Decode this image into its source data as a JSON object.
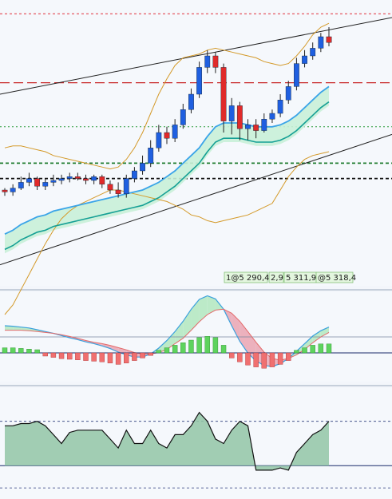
{
  "chart_data": {
    "type": "candlestick-multi-panel",
    "panels": [
      {
        "name": "price",
        "ylim": [
          5200,
          5345
        ],
        "candles": [
          [
            5250,
            5251,
            5247,
            5249
          ],
          [
            5249,
            5253,
            5247,
            5251
          ],
          [
            5251,
            5257,
            5250,
            5254
          ],
          [
            5254,
            5259,
            5252,
            5256
          ],
          [
            5256,
            5257,
            5250,
            5252
          ],
          [
            5252,
            5256,
            5250,
            5254
          ],
          [
            5254,
            5258,
            5252,
            5255
          ],
          [
            5255,
            5258,
            5253,
            5256
          ],
          [
            5256,
            5259,
            5254,
            5257
          ],
          [
            5257,
            5259,
            5255,
            5256
          ],
          [
            5256,
            5258,
            5253,
            5255
          ],
          [
            5255,
            5258,
            5253,
            5257
          ],
          [
            5257,
            5258,
            5251,
            5253
          ],
          [
            5253,
            5255,
            5248,
            5250
          ],
          [
            5250,
            5254,
            5246,
            5248
          ],
          [
            5248,
            5258,
            5246,
            5256
          ],
          [
            5256,
            5262,
            5254,
            5260
          ],
          [
            5260,
            5268,
            5258,
            5264
          ],
          [
            5264,
            5276,
            5262,
            5272
          ],
          [
            5272,
            5284,
            5270,
            5280
          ],
          [
            5280,
            5283,
            5274,
            5277
          ],
          [
            5277,
            5287,
            5275,
            5284
          ],
          [
            5284,
            5295,
            5282,
            5292
          ],
          [
            5292,
            5303,
            5290,
            5300
          ],
          [
            5300,
            5317,
            5298,
            5314
          ],
          [
            5314,
            5323,
            5311,
            5320
          ],
          [
            5320,
            5322,
            5311,
            5314
          ],
          [
            5314,
            5316,
            5280,
            5286
          ],
          [
            5286,
            5298,
            5279,
            5294
          ],
          [
            5294,
            5296,
            5276,
            5282
          ],
          [
            5282,
            5287,
            5276,
            5284
          ],
          [
            5284,
            5287,
            5277,
            5281
          ],
          [
            5281,
            5290,
            5280,
            5287
          ],
          [
            5287,
            5292,
            5285,
            5290
          ],
          [
            5290,
            5300,
            5288,
            5297
          ],
          [
            5297,
            5307,
            5295,
            5304
          ],
          [
            5304,
            5319,
            5302,
            5316
          ],
          [
            5316,
            5323,
            5314,
            5320
          ],
          [
            5320,
            5327,
            5318,
            5324
          ],
          [
            5324,
            5332,
            5322,
            5330
          ],
          [
            5330,
            5335,
            5325,
            5327
          ]
        ],
        "moving_average_values": [
          5227,
          5229,
          5232,
          5234,
          5236,
          5237,
          5239,
          5240,
          5241,
          5242,
          5243,
          5244,
          5245,
          5246,
          5247,
          5248,
          5249,
          5250,
          5252,
          5254,
          5257,
          5260,
          5264,
          5268,
          5272,
          5278,
          5283,
          5285,
          5285,
          5285,
          5284,
          5283,
          5283,
          5283,
          5284,
          5286,
          5289,
          5293,
          5297,
          5301,
          5304
        ],
        "upper_band_values": [
          5272,
          5273,
          5273,
          5272,
          5271,
          5270,
          5268,
          5267,
          5266,
          5265,
          5264,
          5263,
          5262,
          5261,
          5262,
          5266,
          5272,
          5280,
          5290,
          5300,
          5308,
          5315,
          5319,
          5320,
          5321,
          5323,
          5324,
          5323,
          5322,
          5321,
          5320,
          5319,
          5317,
          5316,
          5315,
          5316,
          5320,
          5325,
          5331,
          5335,
          5337
        ],
        "lower_band_values": [
          5185,
          5190,
          5198,
          5206,
          5214,
          5222,
          5229,
          5235,
          5239,
          5242,
          5244,
          5246,
          5248,
          5250,
          5250,
          5249,
          5248,
          5247,
          5246,
          5245,
          5244,
          5242,
          5240,
          5237,
          5236,
          5234,
          5233,
          5234,
          5235,
          5236,
          5237,
          5239,
          5241,
          5243,
          5250,
          5257,
          5262,
          5266,
          5268,
          5269,
          5270
        ],
        "horizontal_levels": [
          5342,
          5306,
          5283,
          5264,
          5256
        ],
        "quotes": [
          "1@5 290,4",
          "2,9",
          "5 311,9",
          "@5 318,4"
        ]
      },
      {
        "name": "oscillator",
        "ylim": [
          -10,
          10
        ],
        "fast_line": [
          2.5,
          2.4,
          2.2,
          2.0,
          1.6,
          1.2,
          0.8,
          0.3,
          -0.2,
          -0.6,
          -1.1,
          -1.5,
          -2.0,
          -2.6,
          -3.4,
          -4.0,
          -4.5,
          -4.5,
          -3.8,
          -2.5,
          -0.8,
          1.2,
          3.5,
          6.2,
          8.4,
          9.2,
          8.5,
          6.2,
          2.5,
          -1.0,
          -3.6,
          -5.4,
          -6.4,
          -6.6,
          -6.0,
          -4.8,
          -3.2,
          -1.5,
          0.2,
          1.4,
          2.2
        ],
        "slow_line": [
          1.5,
          1.5,
          1.5,
          1.4,
          1.2,
          1.0,
          0.8,
          0.5,
          0.1,
          -0.3,
          -0.8,
          -1.2,
          -1.5,
          -1.9,
          -2.4,
          -2.9,
          -3.5,
          -3.8,
          -3.8,
          -3.5,
          -2.8,
          -1.5,
          -0.3,
          1.5,
          3.4,
          5.0,
          6.0,
          6.2,
          5.3,
          3.5,
          1.2,
          -1.2,
          -3.4,
          -4.8,
          -5.2,
          -4.8,
          -4.0,
          -2.8,
          -1.3,
          0.0,
          1.0
        ],
        "histogram": [
          0.8,
          0.8,
          0.7,
          0.6,
          0.5,
          -0.5,
          -0.7,
          -0.9,
          -1.0,
          -1.1,
          -1.2,
          -1.3,
          -1.4,
          -1.6,
          -1.8,
          -1.6,
          -1.2,
          -0.8,
          -0.4,
          0.4,
          0.8,
          1.2,
          1.6,
          2.0,
          2.4,
          2.6,
          2.4,
          1.2,
          -0.8,
          -1.4,
          -1.9,
          -2.2,
          -2.4,
          -2.2,
          -1.8,
          -1.2,
          0.4,
          0.8,
          1.2,
          1.4,
          1.4
        ]
      },
      {
        "name": "indicator",
        "ylim": [
          -15,
          35
        ],
        "levels": [
          20,
          0,
          -10
        ],
        "values": [
          18,
          18,
          19,
          19,
          20,
          18,
          14,
          10,
          15,
          16,
          16,
          16,
          16,
          12,
          8,
          16,
          10,
          10,
          16,
          10,
          8,
          14,
          14,
          18,
          24,
          20,
          12,
          10,
          16,
          20,
          18,
          -2,
          -2,
          -2,
          -1,
          -2,
          6,
          10,
          14,
          16,
          20
        ]
      }
    ]
  }
}
